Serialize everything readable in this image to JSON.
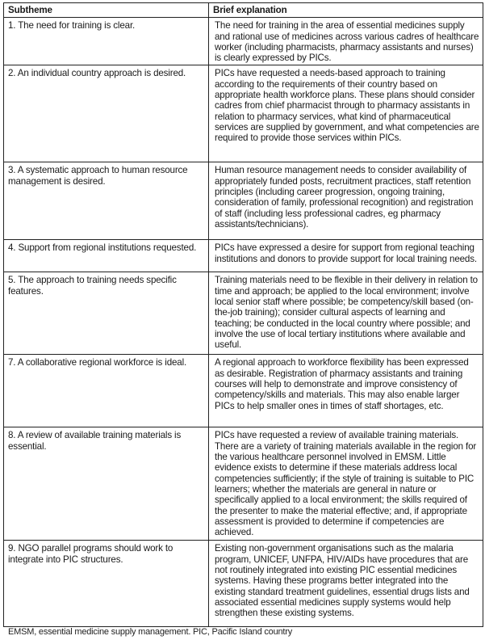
{
  "table": {
    "headers": [
      "Subtheme",
      "Brief explanation"
    ],
    "rows": [
      {
        "subtheme": "1. The need for training is clear.",
        "explanation": "The need for training in the area of essential medicines supply and rational use of medicines across various cadres of healthcare worker (including pharmacists, pharmacy assistants and nurses) is clearly expressed by PICs."
      },
      {
        "subtheme": "2. An individual country approach is desired.",
        "explanation": "PICs have requested a needs-based approach to training according to the requirements of their country based on appropriate health workforce plans. These plans should consider cadres from chief pharmacist through to pharmacy assistants in relation to pharmacy services, what kind of pharmaceutical services are supplied by government, and what competencies are required to provide those services within PICs."
      },
      {
        "subtheme": "3. A systematic approach to human resource management is desired.",
        "explanation": "Human resource management needs to consider availability of appropriately funded posts, recruitment practices, staff retention principles (including career progression, ongoing training, consideration of family, professional recognition) and registration of staff (including less professional cadres, eg pharmacy assistants/technicians)."
      },
      {
        "subtheme": "4. Support from regional institutions requested.",
        "explanation": "PICs have expressed a desire for support from regional teaching institutions and donors to  provide support for local training needs."
      },
      {
        "subtheme": "5. The approach to training needs specific features.",
        "explanation": "Training materials need to be flexible in their delivery in relation to time and approach; be applied to the local environment; involve local senior staff where possible; be competency/skill based (on-the-job training); consider cultural aspects of learning and teaching; be conducted in the local country where possible; and involve the use of local tertiary institutions where available and useful."
      },
      {
        "subtheme": "7. A collaborative regional workforce is ideal.",
        "explanation": "A regional approach to workforce flexibility has been expressed as desirable. Registration of pharmacy assistants and training courses will help to  demonstrate and improve consistency of competency/skills and materials. This may also enable larger PICs to help smaller ones in times of staff shortages, etc."
      },
      {
        "subtheme": "8. A review of available training materials is essential.",
        "explanation": "PICs have requested a review of available training materials. There are a variety of training materials available in the region for the various healthcare personnel involved in EMSM.  Little evidence exists to determine if these materials address local competencies sufficiently; if the style of training is suitable to PIC learners; whether the materials are general in nature or specifically applied to a local environment; the skills required of the presenter to  make the material effective; and, if appropriate assessment is provided to determine if competencies are achieved."
      },
      {
        "subtheme": "9. NGO parallel programs should work to integrate into PIC structures.",
        "explanation": "Existing non-government organisations such as the malaria program, UNICEF, UNFPA, HIV/AIDs  have procedures that are not routinely integrated into existing PIC essential medicines systems. Having these programs better integrated into the existing standard treatment guidelines, essential drugs lists and associated essential medicines supply systems would help strengthen these existing systems."
      }
    ]
  },
  "footnote": "EMSM,  essential medicine supply management. PIC, Pacific Island country"
}
